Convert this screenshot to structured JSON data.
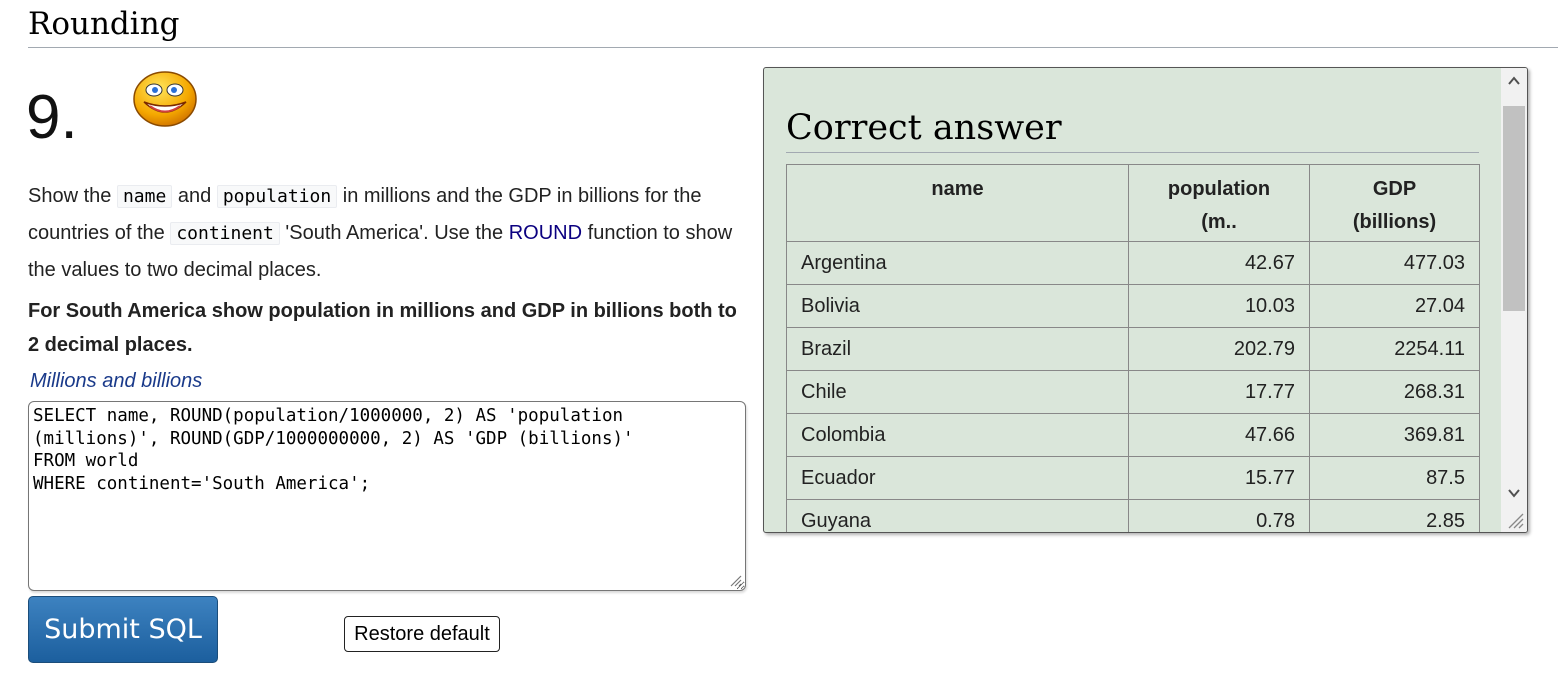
{
  "section": {
    "title": "Rounding"
  },
  "question": {
    "number": "9.",
    "desc": {
      "p1": "Show the",
      "code_name": "name",
      "p2": "and",
      "code_population": "population",
      "p3": "in millions and the GDP in billions for the countries of the",
      "code_continent": "continent",
      "p4": "'South America'. Use the",
      "round_link": "ROUND",
      "p5": "function to show the values to two decimal places."
    },
    "bold_text": "For South America show population in millions and GDP in billions both to 2 decimal places.",
    "hint": "Millions and billions",
    "sql": "SELECT name, ROUND(population/1000000, 2) AS 'population (millions)', ROUND(GDP/1000000000, 2) AS 'GDP (billions)'\nFROM world\nWHERE continent='South America';",
    "submit_label": "Submit SQL",
    "restore_label": "Restore default"
  },
  "answer": {
    "title": "Correct answer",
    "headers": [
      "name",
      "population",
      "(m..",
      "GDP",
      "(billions)"
    ],
    "rows": [
      [
        "Argentina",
        "42.67",
        "477.03"
      ],
      [
        "Bolivia",
        "10.03",
        "27.04"
      ],
      [
        "Brazil",
        "202.79",
        "2254.11"
      ],
      [
        "Chile",
        "17.77",
        "268.31"
      ],
      [
        "Colombia",
        "47.66",
        "369.81"
      ],
      [
        "Ecuador",
        "15.77",
        "87.5"
      ],
      [
        "Guyana",
        "0.78",
        "2.85"
      ]
    ]
  },
  "colors": {
    "panel_bg": "#dae6da",
    "submit_bg": "#2a6fae",
    "link": "#0b0080"
  },
  "icons": {
    "smiley": "smiley-face-icon"
  }
}
